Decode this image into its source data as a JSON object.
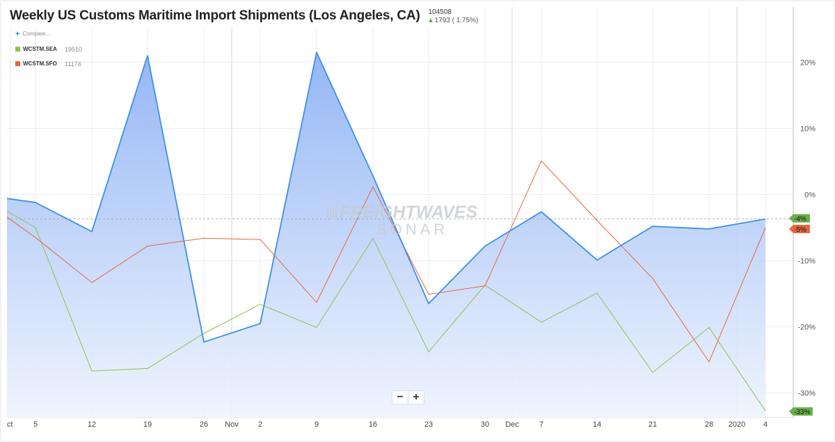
{
  "header": {
    "title": "Weekly US Customs Maritime Import Shipments (Los Angeles, CA)",
    "price": "104508",
    "change": "1793 ( 1.75%)"
  },
  "legend": {
    "compare_label": "Compare...",
    "items": [
      {
        "name": "WCSTM.SEA",
        "value": "19510",
        "color": "#8bc34a"
      },
      {
        "name": "WCSTM.SFO",
        "value": "11174",
        "color": "#e8663d"
      }
    ]
  },
  "watermark": {
    "line1": "FREIGHTWAVES",
    "line2": "SONAR"
  },
  "zoom": {
    "minus": "−",
    "plus": "+"
  },
  "colors": {
    "main": "#3c8fe8",
    "main_fill_top": "#8fb3f5",
    "sea": "#8bc34a",
    "sfo": "#e8663d"
  },
  "chart_data": {
    "type": "line",
    "x_tick_labels": [
      "ct",
      "5",
      "12",
      "19",
      "26",
      "Nov",
      "2",
      "9",
      "16",
      "23",
      "30",
      "Dec",
      "7",
      "14",
      "21",
      "28",
      "2020",
      "4"
    ],
    "y_tick_labels": [
      "20%",
      "10%",
      "0%",
      "-10%",
      "-20%",
      "-30%"
    ],
    "ylim": [
      -33,
      29
    ],
    "y_ticks": [
      20,
      10,
      0,
      -10,
      -20,
      -30
    ],
    "x": [
      "Sep 28",
      "Oct 5",
      "Oct 12",
      "Oct 19",
      "Oct 26",
      "Nov 2",
      "Nov 9",
      "Nov 16",
      "Nov 23",
      "Nov 30",
      "Dec 7",
      "Dec 14",
      "Dec 21",
      "Dec 28",
      "Jan 4"
    ],
    "series": [
      {
        "values": [
          -0.6,
          -1.2,
          -5.6,
          21.0,
          -22.3,
          -19.5,
          21.5,
          2.8,
          -16.5,
          -7.8,
          -2.6,
          -9.9,
          -4.8,
          -5.2,
          -3.7
        ],
        "style": "area"
      },
      {
        "name": "WCSTM.SEA",
        "values": [
          -2.5,
          -5.0,
          -26.7,
          -26.3,
          -21.0,
          -16.6,
          -20.1,
          -6.6,
          -23.8,
          -13.7,
          -19.3,
          -14.9,
          -26.9,
          -20.1,
          -32.7
        ]
      },
      {
        "name": "WCSTM.SFO",
        "values": [
          -3.4,
          -6.5,
          -13.3,
          -7.8,
          -6.6,
          -6.8,
          -16.3,
          1.2,
          -15.1,
          -13.8,
          5.1,
          -3.9,
          -12.7,
          -25.3,
          -5.0
        ]
      }
    ],
    "end_labels": [
      {
        "text": "-4%",
        "color": "#6ab04c"
      },
      {
        "text": "-5%",
        "color": "#e8663d"
      },
      {
        "text": "-33%",
        "color": "#6ab04c"
      }
    ],
    "reference_line": -3.7,
    "grid": true
  }
}
